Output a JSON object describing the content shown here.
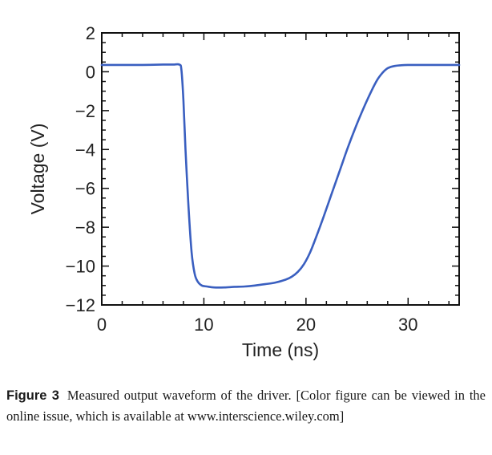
{
  "chart_data": {
    "type": "line",
    "title": "",
    "xlabel": "Time (ns)",
    "ylabel": "Voltage (V)",
    "xlim": [
      0,
      35
    ],
    "ylim": [
      -12,
      2
    ],
    "xticks": [
      0,
      10,
      20,
      30
    ],
    "yticks": [
      2,
      0,
      -2,
      -4,
      -6,
      -8,
      -10,
      -12
    ],
    "xtick_labels": [
      "0",
      "10",
      "20",
      "30"
    ],
    "ytick_labels": [
      "2",
      "0",
      "−2",
      "−4",
      "−6",
      "−8",
      "−10",
      "−12"
    ],
    "grid": false,
    "series": [
      {
        "color": "#3a5fc0",
        "x": [
          0,
          2,
          4,
          6,
          7,
          7.6,
          7.8,
          8.0,
          8.2,
          8.5,
          8.8,
          9.1,
          9.4,
          9.8,
          10.3,
          11,
          12,
          13,
          14,
          15,
          16,
          17,
          18,
          18.6,
          19.2,
          19.8,
          20.4,
          21,
          21.7,
          22.5,
          23.3,
          24.1,
          24.9,
          25.7,
          26.4,
          27,
          27.5,
          27.9,
          28.3,
          28.7,
          29.2,
          30,
          32,
          35
        ],
        "y": [
          0.35,
          0.35,
          0.35,
          0.37,
          0.37,
          0.37,
          0.1,
          -1.5,
          -4.0,
          -7.0,
          -9.3,
          -10.4,
          -10.8,
          -11.0,
          -11.05,
          -11.1,
          -11.1,
          -11.07,
          -11.05,
          -11.0,
          -10.93,
          -10.85,
          -10.7,
          -10.55,
          -10.3,
          -9.9,
          -9.3,
          -8.5,
          -7.5,
          -6.3,
          -5.1,
          -3.9,
          -2.8,
          -1.8,
          -1.0,
          -0.4,
          -0.05,
          0.15,
          0.25,
          0.3,
          0.33,
          0.35,
          0.35,
          0.35
        ]
      }
    ]
  },
  "caption": {
    "label": "Figure 3",
    "text": "Measured output waveform of the driver. [Color figure can be viewed in the online issue, which is available at www.interscience.wiley.com]"
  }
}
